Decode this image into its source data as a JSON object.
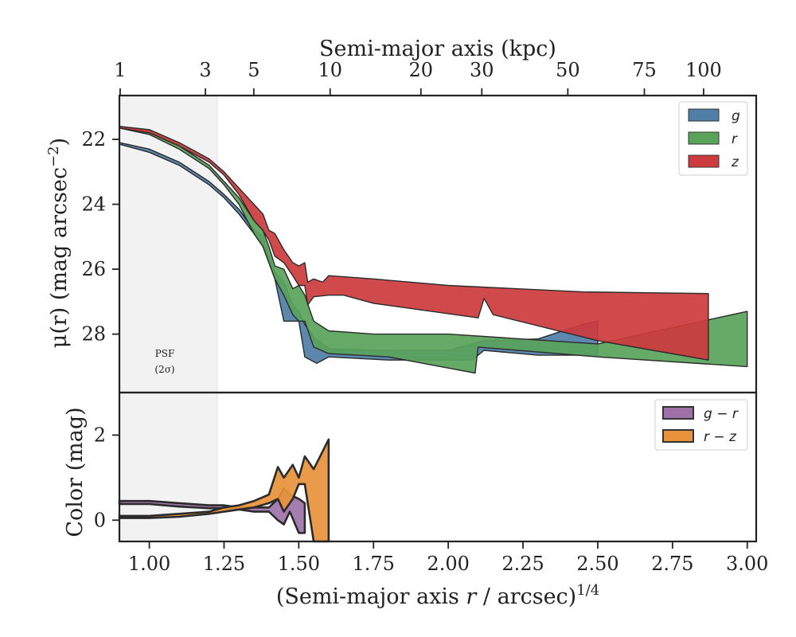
{
  "chart_data": [
    {
      "type": "area",
      "panel": "surface-brightness",
      "xlabel": "(Semi-major axis r / arcsec)^1/4",
      "ylabel": "μ(r) (mag arcsec^−2)",
      "top_xlabel": "Semi-major axis (kpc)",
      "top_xticks": [
        1,
        3,
        5,
        10,
        20,
        30,
        50,
        75,
        100
      ],
      "xlim": [
        0.9,
        3.03
      ],
      "ylim": [
        29.8,
        20.65
      ],
      "y_inverted": true,
      "xticks": [
        1.0,
        1.25,
        1.5,
        1.75,
        2.0,
        2.25,
        2.5,
        2.75,
        3.0
      ],
      "xtick_labels": [
        "1.00",
        "1.25",
        "1.50",
        "1.75",
        "2.00",
        "2.25",
        "2.50",
        "2.75",
        "3.00"
      ],
      "yticks": [
        22,
        24,
        26,
        28
      ],
      "shaded_region": {
        "x": [
          0.9,
          1.225
        ],
        "label_line1": "PSF",
        "label_line2": "(2σ)"
      },
      "legend_position": "upper right",
      "series": [
        {
          "name": "g",
          "color": "#4f7ea6",
          "upper": [
            [
              0.9,
              22.1
            ],
            [
              1.0,
              22.3
            ],
            [
              1.1,
              22.7
            ],
            [
              1.2,
              23.3
            ],
            [
              1.25,
              23.7
            ],
            [
              1.3,
              24.15
            ],
            [
              1.35,
              24.8
            ],
            [
              1.38,
              25.0
            ],
            [
              1.4,
              25.6
            ],
            [
              1.42,
              26.1
            ],
            [
              1.45,
              26.4
            ],
            [
              1.48,
              27.1
            ],
            [
              1.5,
              27.3
            ],
            [
              1.52,
              27.7
            ],
            [
              1.55,
              28.1
            ],
            [
              1.6,
              28.45
            ],
            [
              1.75,
              28.5
            ],
            [
              2.0,
              28.5
            ],
            [
              2.12,
              28.2
            ],
            [
              2.3,
              28.15
            ],
            [
              2.45,
              27.7
            ],
            [
              2.5,
              27.6
            ]
          ],
          "lower": [
            [
              2.5,
              28.65
            ],
            [
              2.3,
              28.65
            ],
            [
              2.12,
              28.5
            ],
            [
              2.08,
              28.8
            ],
            [
              1.8,
              28.8
            ],
            [
              1.6,
              28.7
            ],
            [
              1.56,
              28.9
            ],
            [
              1.52,
              28.7
            ],
            [
              1.5,
              27.6
            ],
            [
              1.45,
              27.6
            ],
            [
              1.42,
              26.3
            ],
            [
              1.38,
              25.3
            ],
            [
              1.35,
              24.9
            ],
            [
              1.3,
              24.3
            ],
            [
              1.25,
              23.8
            ],
            [
              1.2,
              23.4
            ],
            [
              1.1,
              22.8
            ],
            [
              1.0,
              22.4
            ],
            [
              0.9,
              22.15
            ]
          ]
        },
        {
          "name": "r",
          "color": "#59a35b",
          "upper": [
            [
              0.9,
              21.6
            ],
            [
              1.0,
              21.75
            ],
            [
              1.1,
              22.2
            ],
            [
              1.2,
              22.8
            ],
            [
              1.25,
              23.3
            ],
            [
              1.3,
              23.8
            ],
            [
              1.35,
              24.5
            ],
            [
              1.38,
              24.8
            ],
            [
              1.4,
              25.3
            ],
            [
              1.42,
              25.9
            ],
            [
              1.45,
              26.0
            ],
            [
              1.48,
              26.6
            ],
            [
              1.5,
              26.5
            ],
            [
              1.52,
              26.8
            ],
            [
              1.55,
              27.6
            ],
            [
              1.6,
              27.9
            ],
            [
              1.75,
              28.0
            ],
            [
              2.0,
              28.0
            ],
            [
              2.5,
              28.3
            ],
            [
              3.0,
              27.3
            ]
          ],
          "lower": [
            [
              3.0,
              29.0
            ],
            [
              2.5,
              28.7
            ],
            [
              2.1,
              28.4
            ],
            [
              2.09,
              29.2
            ],
            [
              1.8,
              28.7
            ],
            [
              1.6,
              28.6
            ],
            [
              1.55,
              28.4
            ],
            [
              1.52,
              27.6
            ],
            [
              1.5,
              27.6
            ],
            [
              1.48,
              27.4
            ],
            [
              1.45,
              26.8
            ],
            [
              1.42,
              26.3
            ],
            [
              1.38,
              25.3
            ],
            [
              1.35,
              24.9
            ],
            [
              1.3,
              24.0
            ],
            [
              1.25,
              23.4
            ],
            [
              1.2,
              22.9
            ],
            [
              1.1,
              22.3
            ],
            [
              1.0,
              21.85
            ],
            [
              0.9,
              21.65
            ]
          ]
        },
        {
          "name": "z",
          "color": "#cc3b3d",
          "upper": [
            [
              0.9,
              21.6
            ],
            [
              1.0,
              21.7
            ],
            [
              1.1,
              22.1
            ],
            [
              1.2,
              22.6
            ],
            [
              1.25,
              23.0
            ],
            [
              1.3,
              23.5
            ],
            [
              1.35,
              24.0
            ],
            [
              1.38,
              24.3
            ],
            [
              1.4,
              24.8
            ],
            [
              1.42,
              24.9
            ],
            [
              1.45,
              25.4
            ],
            [
              1.48,
              25.8
            ],
            [
              1.5,
              25.9
            ],
            [
              1.52,
              25.8
            ],
            [
              1.53,
              26.4
            ],
            [
              1.55,
              26.3
            ],
            [
              1.58,
              26.4
            ],
            [
              1.6,
              26.2
            ],
            [
              1.75,
              26.3
            ],
            [
              2.0,
              26.5
            ],
            [
              2.45,
              26.7
            ],
            [
              2.87,
              26.75
            ]
          ],
          "lower": [
            [
              2.87,
              28.8
            ],
            [
              2.5,
              28.2
            ],
            [
              2.15,
              27.4
            ],
            [
              2.12,
              26.9
            ],
            [
              2.1,
              27.5
            ],
            [
              1.75,
              27.05
            ],
            [
              1.65,
              26.8
            ],
            [
              1.6,
              26.8
            ],
            [
              1.55,
              26.85
            ],
            [
              1.53,
              27.1
            ],
            [
              1.52,
              26.5
            ],
            [
              1.5,
              26.5
            ],
            [
              1.48,
              26.2
            ],
            [
              1.45,
              25.8
            ],
            [
              1.42,
              25.6
            ],
            [
              1.4,
              25.1
            ],
            [
              1.38,
              24.8
            ],
            [
              1.35,
              24.5
            ],
            [
              1.3,
              23.7
            ],
            [
              1.25,
              23.1
            ],
            [
              1.2,
              22.7
            ],
            [
              1.1,
              22.2
            ],
            [
              1.0,
              21.8
            ],
            [
              0.9,
              21.65
            ]
          ]
        }
      ]
    },
    {
      "type": "area",
      "panel": "color",
      "xlabel": "(Semi-major axis r / arcsec)^1/4",
      "ylabel": "Color (mag)",
      "xlim": [
        0.9,
        3.03
      ],
      "ylim": [
        -0.5,
        3.0
      ],
      "yticks": [
        0,
        2
      ],
      "legend_position": "upper right",
      "series": [
        {
          "name": "g − r",
          "color": "#9e72a8",
          "upper": [
            [
              0.9,
              0.45
            ],
            [
              1.0,
              0.45
            ],
            [
              1.1,
              0.4
            ],
            [
              1.2,
              0.35
            ],
            [
              1.25,
              0.35
            ],
            [
              1.3,
              0.3
            ],
            [
              1.35,
              0.3
            ],
            [
              1.4,
              0.3
            ],
            [
              1.43,
              0.5
            ],
            [
              1.45,
              0.75
            ],
            [
              1.47,
              0.6
            ],
            [
              1.5,
              0.5
            ],
            [
              1.52,
              0.4
            ]
          ],
          "lower": [
            [
              1.52,
              -0.3
            ],
            [
              1.5,
              -0.3
            ],
            [
              1.47,
              0.2
            ],
            [
              1.45,
              -0.1
            ],
            [
              1.43,
              0.0
            ],
            [
              1.4,
              0.2
            ],
            [
              1.35,
              0.2
            ],
            [
              1.3,
              0.25
            ],
            [
              1.25,
              0.28
            ],
            [
              1.2,
              0.28
            ],
            [
              1.1,
              0.32
            ],
            [
              1.0,
              0.38
            ],
            [
              0.9,
              0.38
            ]
          ]
        },
        {
          "name": "r − z",
          "color": "#e8923b",
          "upper": [
            [
              0.9,
              0.1
            ],
            [
              1.0,
              0.1
            ],
            [
              1.1,
              0.15
            ],
            [
              1.2,
              0.2
            ],
            [
              1.25,
              0.3
            ],
            [
              1.3,
              0.35
            ],
            [
              1.35,
              0.45
            ],
            [
              1.4,
              0.6
            ],
            [
              1.43,
              1.25
            ],
            [
              1.45,
              1.0
            ],
            [
              1.48,
              1.3
            ],
            [
              1.5,
              1.0
            ],
            [
              1.52,
              1.5
            ],
            [
              1.55,
              1.2
            ],
            [
              1.6,
              1.9
            ]
          ],
          "lower": [
            [
              1.6,
              -0.5
            ],
            [
              1.55,
              -0.5
            ],
            [
              1.52,
              0.85
            ],
            [
              1.5,
              0.85
            ],
            [
              1.48,
              0.5
            ],
            [
              1.45,
              0.2
            ],
            [
              1.43,
              0.5
            ],
            [
              1.4,
              0.4
            ],
            [
              1.35,
              0.3
            ],
            [
              1.3,
              0.25
            ],
            [
              1.25,
              0.2
            ],
            [
              1.2,
              0.15
            ],
            [
              1.1,
              0.08
            ],
            [
              1.0,
              0.05
            ],
            [
              0.9,
              0.05
            ]
          ]
        }
      ]
    }
  ],
  "text": {
    "top_title": "Semi-major axis (kpc)",
    "top_ticks": [
      "1",
      "3",
      "5",
      "10",
      "20",
      "30",
      "50",
      "75",
      "100"
    ],
    "ylabel_top_main": "μ(r) (mag arcsec",
    "ylabel_top_sup": "−2",
    "ylabel_top_close": ")",
    "ylabel_bottom": "Color (mag)",
    "xlabel_main": "(Semi-major axis ",
    "xlabel_r": "r",
    "xlabel_rest": " / arcsec)",
    "xlabel_sup": "1/4",
    "psf_line1": "PSF",
    "psf_line2": "(2σ)",
    "legend_top": [
      "g",
      "r",
      "z"
    ],
    "legend_bottom": [
      "g − r",
      "r − z"
    ],
    "ticks_top_panel_y": [
      "22",
      "24",
      "26",
      "28"
    ],
    "ticks_bottom_panel_y": [
      "0",
      "2"
    ],
    "ticks_x": [
      "1.00",
      "1.25",
      "1.50",
      "1.75",
      "2.00",
      "2.25",
      "2.50",
      "2.75",
      "3.00"
    ]
  }
}
